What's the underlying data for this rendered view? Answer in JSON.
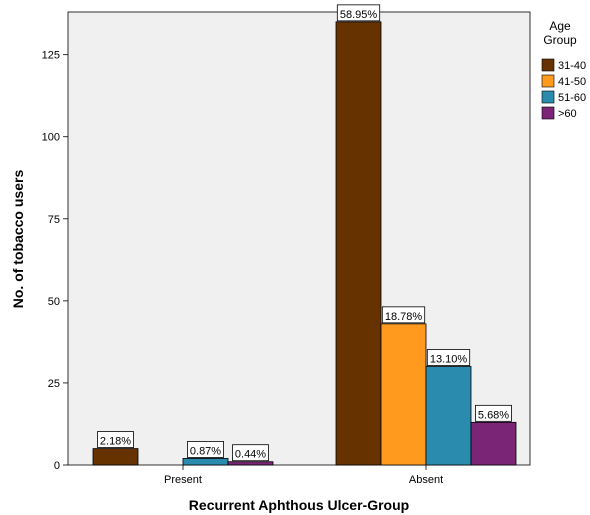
{
  "chart_data": {
    "type": "bar",
    "categories": [
      "Present",
      "Absent"
    ],
    "xlabel": "Recurrent Aphthous Ulcer-Group",
    "ylabel": "No. of tobacco users",
    "ylim": [
      0,
      138
    ],
    "yticks": [
      0,
      25,
      50,
      75,
      100,
      125
    ],
    "grid": false,
    "legend": {
      "title_lines": [
        "Age",
        "Group"
      ],
      "placement": "right"
    },
    "series": [
      {
        "name": "31-40",
        "color": "#663300",
        "values": [
          5,
          135
        ],
        "labels": [
          "2.18%",
          "58.95%"
        ]
      },
      {
        "name": "41-50",
        "color": "#FF9A1E",
        "values": [
          0,
          43
        ],
        "labels": [
          "",
          "18.78%"
        ]
      },
      {
        "name": "51-60",
        "color": "#2B8BAF",
        "values": [
          2,
          30
        ],
        "labels": [
          "0.87%",
          "13.10%"
        ]
      },
      {
        "name": ">60",
        "color": "#7B2577",
        "values": [
          1,
          13
        ],
        "labels": [
          "0.44%",
          "5.68%"
        ]
      }
    ]
  }
}
